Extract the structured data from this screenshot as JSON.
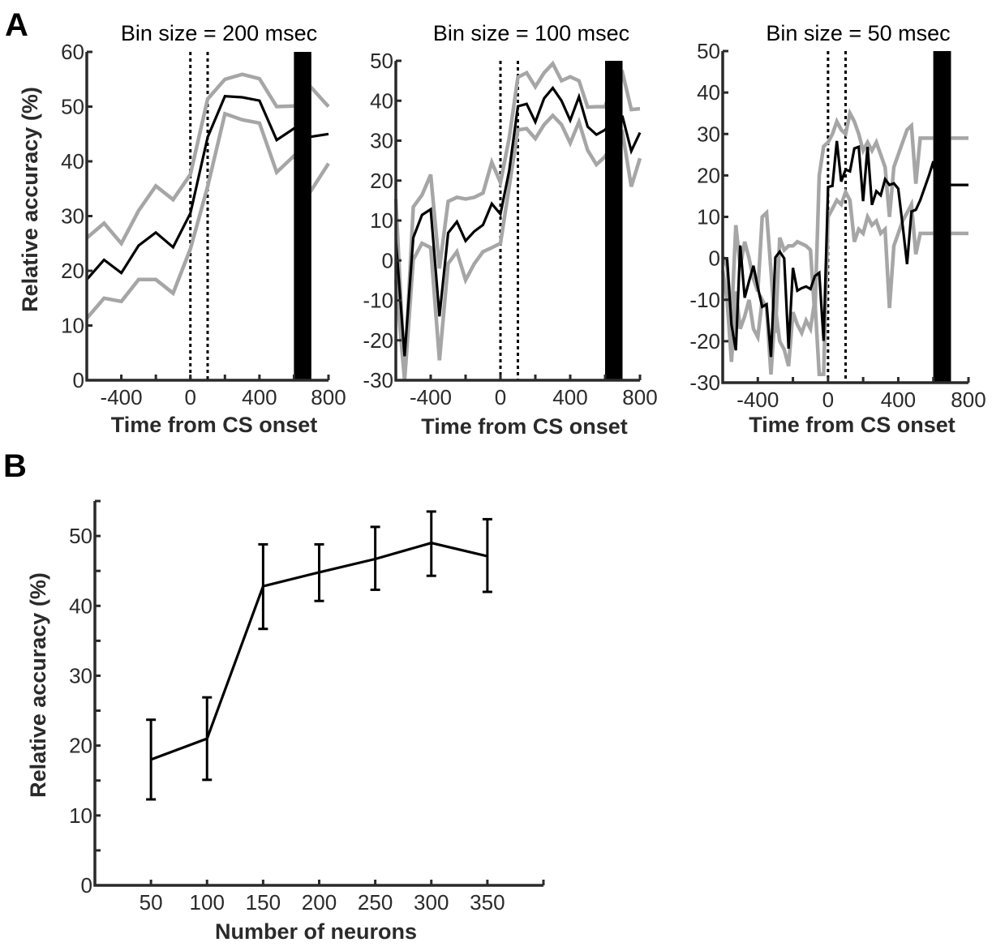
{
  "figure": {
    "panel_labels": [
      "A",
      "B"
    ]
  },
  "chart_data": [
    {
      "panel": "A",
      "type": "line",
      "title": "Bin size = 200 msec",
      "xlabel": "Time from CS onset",
      "ylabel": "Relative accuracy (%)",
      "xlim": [
        -600,
        800
      ],
      "ylim": [
        0,
        60
      ],
      "xticks": [
        -600,
        -400,
        -200,
        0,
        200,
        400,
        600,
        800
      ],
      "xtick_labels": [
        "",
        "-400",
        "",
        "0",
        "",
        "400",
        "",
        "800"
      ],
      "yticks": [
        0,
        10,
        20,
        30,
        40,
        50,
        60
      ],
      "ytick_labels": [
        "0",
        "10",
        "20",
        "30",
        "40",
        "50",
        "60"
      ],
      "event_lines": [
        0,
        100
      ],
      "shaded_interval": [
        600,
        700
      ],
      "grid": false,
      "x": [
        -600,
        -500,
        -400,
        -300,
        -200,
        -100,
        0,
        100,
        200,
        300,
        400,
        500,
        600,
        700,
        800
      ],
      "series": [
        {
          "name": "mean",
          "color": "#000000",
          "values": [
            18.4,
            22.0,
            19.6,
            24.6,
            27.0,
            24.3,
            30.5,
            44.4,
            51.9,
            51.7,
            51.1,
            43.9,
            46.0,
            44.5,
            45.0
          ]
        },
        {
          "name": "upper bound",
          "color": "#a6a6a6",
          "values": [
            26.0,
            28.7,
            25.0,
            31.0,
            35.5,
            33.0,
            37.6,
            51.4,
            55.0,
            55.9,
            55.1,
            50.0,
            50.1,
            53.5,
            50.0
          ]
        },
        {
          "name": "lower bound",
          "color": "#a6a6a6",
          "values": [
            11.3,
            15.0,
            14.4,
            18.4,
            18.4,
            15.9,
            24.0,
            35.4,
            48.7,
            47.6,
            47.0,
            38.0,
            41.0,
            34.7,
            39.6
          ]
        }
      ]
    },
    {
      "panel": "A",
      "type": "line",
      "title": "Bin size = 100 msec",
      "xlabel": "Time from CS onset",
      "ylabel": "",
      "xlim": [
        -600,
        800
      ],
      "ylim": [
        -30,
        50
      ],
      "xticks": [
        -600,
        -400,
        -200,
        0,
        200,
        400,
        600,
        800
      ],
      "xtick_labels": [
        "",
        "-400",
        "",
        "0",
        "",
        "400",
        "",
        "800"
      ],
      "yticks": [
        -30,
        -20,
        -10,
        0,
        10,
        20,
        30,
        40,
        50
      ],
      "ytick_labels": [
        "-30",
        "-20",
        "-10",
        "0",
        "10",
        "20",
        "30",
        "40",
        "50"
      ],
      "event_lines": [
        0,
        100
      ],
      "shaded_interval": [
        600,
        700
      ],
      "grid": false,
      "x": [
        -600,
        -550,
        -500,
        -450,
        -400,
        -350,
        -300,
        -250,
        -200,
        -150,
        -100,
        -50,
        0,
        50,
        100,
        150,
        200,
        250,
        300,
        350,
        400,
        450,
        500,
        550,
        600,
        650,
        700,
        750,
        800
      ],
      "series": [
        {
          "name": "mean",
          "color": "#000000",
          "values": [
            5.3,
            -24.0,
            5.7,
            11.4,
            12.8,
            -14.0,
            6.9,
            9.7,
            4.9,
            7.3,
            8.9,
            14.2,
            11.6,
            22.5,
            38.6,
            39.2,
            34.7,
            40.6,
            43.2,
            40.0,
            35.1,
            41.0,
            33.5,
            31.5,
            32.7,
            36.0,
            36.0,
            27.4,
            32.0
          ]
        },
        {
          "name": "upper bound",
          "color": "#a6a6a6",
          "values": [
            15.4,
            -29.0,
            13.4,
            16.4,
            21.5,
            -2.0,
            14.8,
            15.8,
            15.4,
            15.8,
            16.9,
            24.6,
            19.5,
            30.7,
            45.9,
            47.0,
            43.5,
            47.0,
            49.3,
            45.0,
            46.0,
            45.0,
            38.4,
            38.5,
            38.5,
            45.0,
            47.0,
            37.8,
            38.0
          ]
        },
        {
          "name": "lower bound",
          "color": "#a6a6a6",
          "values": [
            -4.9,
            -30.0,
            0.2,
            4.3,
            3.2,
            -25.0,
            -0.8,
            2.2,
            -4.9,
            -0.8,
            2.2,
            3.2,
            4.3,
            18.5,
            32.7,
            33.0,
            30.5,
            34.0,
            36.3,
            34.0,
            29.4,
            34.7,
            27.6,
            24.0,
            26.0,
            30.0,
            32.0,
            18.5,
            25.6
          ]
        }
      ]
    },
    {
      "panel": "A",
      "type": "line",
      "title": "Bin size = 50 msec",
      "xlabel": "Time from CS onset",
      "ylabel": "",
      "xlim": [
        -600,
        800
      ],
      "ylim": [
        -30,
        50
      ],
      "xticks": [
        -600,
        -400,
        -200,
        0,
        200,
        400,
        600,
        800
      ],
      "xtick_labels": [
        "",
        "-400",
        "",
        "0",
        "",
        "400",
        "",
        "800"
      ],
      "yticks": [
        -30,
        -20,
        -10,
        0,
        10,
        20,
        30,
        40,
        50
      ],
      "ytick_labels": [
        "-30",
        "-20",
        "-10",
        "0",
        "10",
        "20",
        "30",
        "40",
        "50"
      ],
      "event_lines": [
        0,
        100
      ],
      "shaded_interval": [
        600,
        700
      ],
      "grid": false,
      "x": [
        -600,
        -575,
        -550,
        -525,
        -500,
        -475,
        -450,
        -425,
        -400,
        -375,
        -350,
        -325,
        -300,
        -275,
        -250,
        -225,
        -200,
        -175,
        -150,
        -125,
        -100,
        -75,
        -50,
        -25,
        0,
        25,
        50,
        75,
        100,
        125,
        150,
        175,
        200,
        225,
        250,
        275,
        300,
        325,
        350,
        375,
        400,
        425,
        450,
        475,
        500,
        525,
        550,
        575,
        600,
        625,
        650,
        675,
        700,
        725,
        750,
        775,
        800
      ],
      "series": [
        {
          "name": "mean",
          "color": "#000000",
          "values": [
            0.0,
            0.0,
            -16.0,
            -22.2,
            3.1,
            -9.5,
            -5.5,
            -1.8,
            -7.0,
            -11.7,
            -11.1,
            -23.8,
            0.2,
            1.6,
            0.0,
            -21.8,
            -2.3,
            -7.8,
            -7.2,
            -6.8,
            -7.4,
            -4.3,
            -3.5,
            -19.9,
            17.2,
            17.5,
            28.3,
            18.5,
            21.4,
            21.0,
            26.5,
            26.9,
            13.8,
            26.9,
            12.9,
            16.2,
            15.2,
            19.1,
            17.7,
            18.1,
            16.8,
            8.0,
            -1.4,
            11.3,
            11.7,
            14.0,
            17.0,
            20.0,
            23.4,
            15.0,
            6.6,
            17.7,
            17.7,
            17.7,
            17.7,
            17.7,
            17.7
          ]
        },
        {
          "name": "upper bound",
          "color": "#a6a6a6",
          "values": [
            0.5,
            -2.0,
            -15.0,
            8.0,
            -2.0,
            4.0,
            0.0,
            -5.0,
            -8.0,
            10.0,
            11.0,
            -3.0,
            -18.0,
            5.0,
            2.0,
            3.0,
            3.0,
            4.0,
            3.5,
            3.0,
            2.0,
            -14.0,
            20.0,
            27.0,
            28.0,
            30.0,
            33.0,
            31.0,
            30.0,
            35.0,
            33.0,
            30.0,
            26.0,
            28.0,
            26.0,
            28.0,
            25.0,
            22.0,
            10.0,
            22.0,
            25.0,
            28.0,
            31.0,
            32.0,
            18.0,
            29.0,
            29.0,
            29.0,
            29.0,
            29.0,
            29.0,
            29.0,
            29.0,
            29.0,
            29.0,
            29.0,
            29.0
          ]
        },
        {
          "name": "lower bound",
          "color": "#a6a6a6",
          "values": [
            -3.0,
            -10.0,
            -25.0,
            -8.0,
            -17.0,
            -14.0,
            -10.0,
            -17.0,
            -19.0,
            -10.0,
            -12.0,
            -28.0,
            -12.0,
            -20.0,
            -22.0,
            -26.0,
            -13.0,
            -16.0,
            -18.0,
            -15.0,
            -17.0,
            -10.0,
            -28.0,
            -28.0,
            10.0,
            12.0,
            14.0,
            13.0,
            16.0,
            14.0,
            4.0,
            7.0,
            6.0,
            10.0,
            8.0,
            9.0,
            6.0,
            7.0,
            -12.0,
            3.0,
            6.0,
            9.0,
            11.0,
            13.0,
            1.0,
            6.0,
            6.0,
            6.0,
            6.0,
            6.0,
            6.0,
            6.0,
            6.0,
            6.0,
            6.0,
            6.0,
            6.0
          ]
        }
      ]
    },
    {
      "panel": "B",
      "type": "line",
      "title": "",
      "xlabel": "Number of neurons",
      "ylabel": "Relative accuracy (%)",
      "xlim": [
        0,
        400
      ],
      "ylim": [
        0,
        55
      ],
      "xticks": [
        50,
        100,
        150,
        200,
        250,
        300,
        350,
        400
      ],
      "xtick_labels": [
        "50",
        "100",
        "150",
        "200",
        "250",
        "300",
        "350",
        ""
      ],
      "yticks": [
        0,
        5,
        10,
        15,
        20,
        25,
        30,
        35,
        40,
        45,
        50,
        55
      ],
      "ytick_labels": [
        "0",
        "",
        "10",
        "",
        "20",
        "",
        "30",
        "",
        "40",
        "",
        "50",
        ""
      ],
      "grid": false,
      "x": [
        50,
        100,
        150,
        200,
        250,
        300,
        350
      ],
      "series": [
        {
          "name": "mean",
          "color": "#000000",
          "values": [
            18.0,
            21.0,
            42.8,
            44.8,
            46.7,
            49.0,
            47.1
          ],
          "error_low": [
            12.3,
            15.1,
            36.7,
            40.7,
            42.3,
            44.3,
            42.0
          ],
          "error_high": [
            23.7,
            26.9,
            48.8,
            48.8,
            51.3,
            53.5,
            52.4
          ]
        }
      ]
    }
  ]
}
